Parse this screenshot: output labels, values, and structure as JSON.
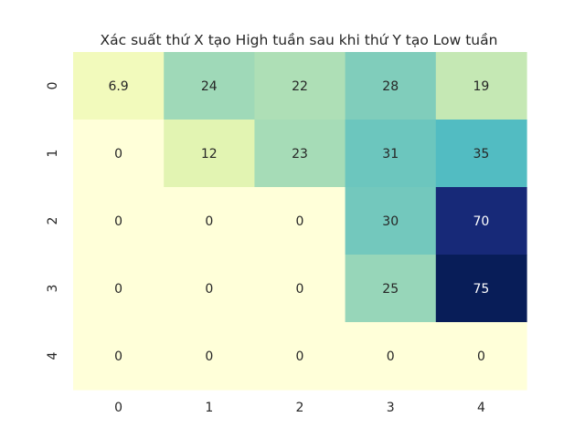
{
  "chart_data": {
    "type": "heatmap",
    "title": "Xác suất thứ X tạo High tuần sau khi thứ Y tạo Low tuần",
    "xlabel": "",
    "ylabel": "",
    "x_categories": [
      "0",
      "1",
      "2",
      "3",
      "4"
    ],
    "y_categories": [
      "0",
      "1",
      "2",
      "3",
      "4"
    ],
    "values": [
      [
        6.9,
        24,
        22,
        28,
        19
      ],
      [
        0,
        12,
        23,
        31,
        35
      ],
      [
        0,
        0,
        0,
        30,
        70
      ],
      [
        0,
        0,
        0,
        25,
        75
      ],
      [
        0,
        0,
        0,
        0,
        0
      ]
    ],
    "value_labels": [
      [
        "6.9",
        "24",
        "22",
        "28",
        "19"
      ],
      [
        "0",
        "12",
        "23",
        "31",
        "35"
      ],
      [
        "0",
        "0",
        "0",
        "30",
        "70"
      ],
      [
        "0",
        "0",
        "0",
        "25",
        "75"
      ],
      [
        "0",
        "0",
        "0",
        "0",
        "0"
      ]
    ],
    "colormap": "YlGnBu",
    "color_range": [
      0,
      75
    ],
    "colorbar": false,
    "grid": false
  }
}
